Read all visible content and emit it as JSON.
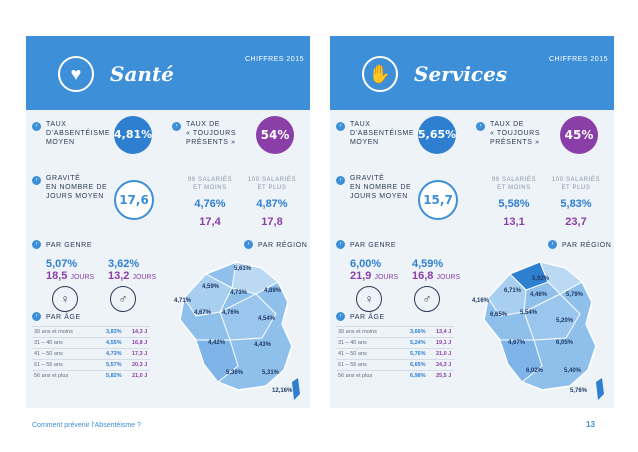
{
  "sante": {
    "title": "Santé",
    "tag": "CHIFFRES 2015",
    "absenteisme": {
      "label_l1": "TAUX",
      "label_l2": "D’ABSENTÉISME",
      "label_l3": "MOYEN",
      "value": "4,81%"
    },
    "toujours": {
      "label_l1": "TAUX DE",
      "label_l2": "« TOUJOURS",
      "label_l3": "PRÉSENTS »",
      "value": "54%"
    },
    "gravite": {
      "label_l1": "GRAVITÉ",
      "label_l2": "EN NOMBRE DE",
      "label_l3": "JOURS MOYEN",
      "value": "17,6"
    },
    "small": {
      "head_l1": "99 SALARIÉS",
      "head_l2": "ET MOINS",
      "pct": "4,76%",
      "days": "17,4"
    },
    "large": {
      "head_l1": "100 SALARIÉS",
      "head_l2": "ET PLUS",
      "pct": "4,87%",
      "days": "17,8"
    },
    "genre_label": "PAR GENRE",
    "region_label": "PAR RÉGION",
    "femme": {
      "pct": "5,07%",
      "days": "18,5",
      "unit": "JOURS"
    },
    "homme": {
      "pct": "3,62%",
      "days": "13,2",
      "unit": "JOURS"
    },
    "age_label": "PAR ÂGE",
    "ages": [
      {
        "age": "30 ans et moins",
        "pct": "3,83%",
        "days": "14,3 J"
      },
      {
        "age": "31 – 40 ans",
        "pct": "4,55%",
        "days": "16,8 J"
      },
      {
        "age": "41 – 50 ans",
        "pct": "4,73%",
        "days": "17,3 J"
      },
      {
        "age": "51 – 55 ans",
        "pct": "5,57%",
        "days": "20,3 J"
      },
      {
        "age": "56 ans et plus",
        "pct": "5,82%",
        "days": "21,0 J"
      }
    ],
    "regions": [
      "5,61%",
      "4,59%",
      "4,73%",
      "4,89%",
      "4,71%",
      "4,67%",
      "4,76%",
      "4,54%",
      "4,42%",
      "4,43%",
      "5,36%",
      "5,31%",
      "12,16%"
    ]
  },
  "services": {
    "title": "Services",
    "tag": "CHIFFRES 2015",
    "absenteisme": {
      "label_l1": "TAUX",
      "label_l2": "D’ABSENTÉISME",
      "label_l3": "MOYEN",
      "value": "5,65%"
    },
    "toujours": {
      "label_l1": "TAUX DE",
      "label_l2": "« TOUJOURS",
      "label_l3": "PRÉSENTS »",
      "value": "45%"
    },
    "gravite": {
      "label_l1": "GRAVITÉ",
      "label_l2": "EN NOMBRE DE",
      "label_l3": "JOURS MOYEN",
      "value": "15,7"
    },
    "small": {
      "head_l1": "99 SALARIÉS",
      "head_l2": "ET MOINS",
      "pct": "5,58%",
      "days": "13,1"
    },
    "large": {
      "head_l1": "100 SALARIÉS",
      "head_l2": "ET PLUS",
      "pct": "5,83%",
      "days": "23,7"
    },
    "genre_label": "PAR GENRE",
    "region_label": "PAR RÉGION",
    "femme": {
      "pct": "6,00%",
      "days": "21,9",
      "unit": "JOURS"
    },
    "homme": {
      "pct": "4,59%",
      "days": "16,8",
      "unit": "JOURS"
    },
    "age_label": "PAR ÂGE",
    "ages": [
      {
        "age": "30 ans et moins",
        "pct": "3,66%",
        "days": "13,4 J"
      },
      {
        "age": "31 – 40 ans",
        "pct": "5,24%",
        "days": "19,1 J"
      },
      {
        "age": "41 – 50 ans",
        "pct": "5,76%",
        "days": "21,0 J"
      },
      {
        "age": "51 – 55 ans",
        "pct": "6,65%",
        "days": "24,3 J"
      },
      {
        "age": "56 ans et plus",
        "pct": "6,98%",
        "days": "25,5 J"
      }
    ],
    "regions": [
      "5,92%",
      "6,71%",
      "4,46%",
      "5,79%",
      "4,16%",
      "6,65%",
      "5,54%",
      "5,20%",
      "4,67%",
      "6,05%",
      "6,02%",
      "5,40%",
      "5,76%"
    ]
  },
  "footer": {
    "text": "Comment prévenir l’Absentéisme ?",
    "page": "13"
  },
  "colors": {
    "accent": "#3d8fd8",
    "purple": "#8a3fa8",
    "panel": "#eef3f8"
  }
}
